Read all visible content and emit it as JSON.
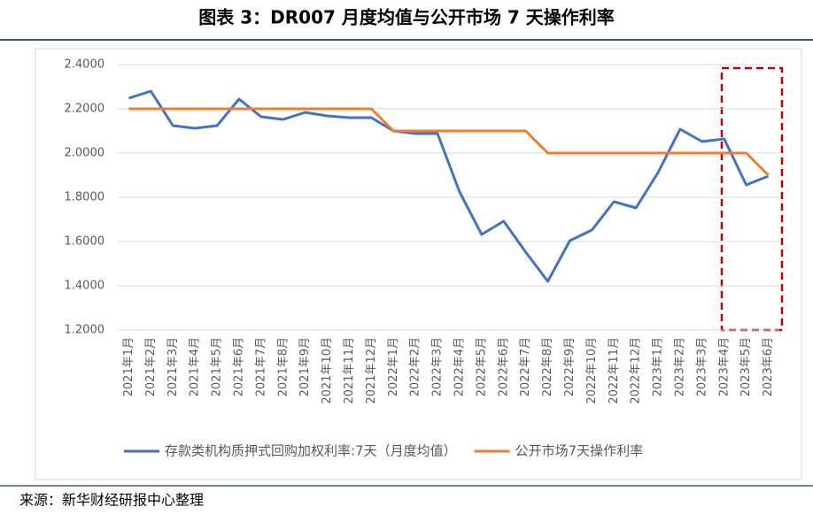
{
  "header": {
    "title": "图表 3：DR007 月度均值与公开市场 7 天操作利率"
  },
  "chart_data": {
    "type": "line",
    "categories": [
      "2021年1月",
      "2021年2月",
      "2021年3月",
      "2021年4月",
      "2021年5月",
      "2021年6月",
      "2021年7月",
      "2021年8月",
      "2021年9月",
      "2021年10月",
      "2021年11月",
      "2021年12月",
      "2022年1月",
      "2022年2月",
      "2022年3月",
      "2022年4月",
      "2022年5月",
      "2022年6月",
      "2022年7月",
      "2022年8月",
      "2022年9月",
      "2022年10月",
      "2022年11月",
      "2022年12月",
      "2023年1月",
      "2023年2月",
      "2023年3月",
      "2023年4月",
      "2023年5月",
      "2023年6月"
    ],
    "series": [
      {
        "name": "存款类机构质押式回购加权利率:7天（月度均值）",
        "color": "#4472c4",
        "values": [
          2.248,
          2.28,
          2.124,
          2.112,
          2.124,
          2.244,
          2.164,
          2.152,
          2.184,
          2.168,
          2.16,
          2.16,
          2.1,
          2.088,
          2.088,
          1.824,
          1.632,
          1.692,
          1.552,
          1.42,
          1.604,
          1.652,
          1.78,
          1.752,
          1.912,
          2.108,
          2.052,
          2.064,
          1.856,
          1.896
        ]
      },
      {
        "name": "公开市场7天操作利率",
        "color": "#ed7d31",
        "values": [
          2.2,
          2.2,
          2.2,
          2.2,
          2.2,
          2.2,
          2.2,
          2.2,
          2.2,
          2.2,
          2.2,
          2.2,
          2.1,
          2.1,
          2.1,
          2.1,
          2.1,
          2.1,
          2.1,
          2.0,
          2.0,
          2.0,
          2.0,
          2.0,
          2.0,
          2.0,
          2.0,
          2.0,
          2.0,
          1.9
        ]
      }
    ],
    "ylim": [
      1.2,
      2.4
    ],
    "yticks": [
      {
        "value": 1.2,
        "label": "1.2000"
      },
      {
        "value": 1.4,
        "label": "1.4000"
      },
      {
        "value": 1.6,
        "label": "1.6000"
      },
      {
        "value": 1.8,
        "label": "1.8000"
      },
      {
        "value": 2.0,
        "label": "2.0000"
      },
      {
        "value": 2.2,
        "label": "2.2000"
      },
      {
        "value": 2.4,
        "label": "2.4000"
      }
    ],
    "grid": true
  },
  "footer": {
    "source": "来源：新华财经研报中心整理"
  }
}
